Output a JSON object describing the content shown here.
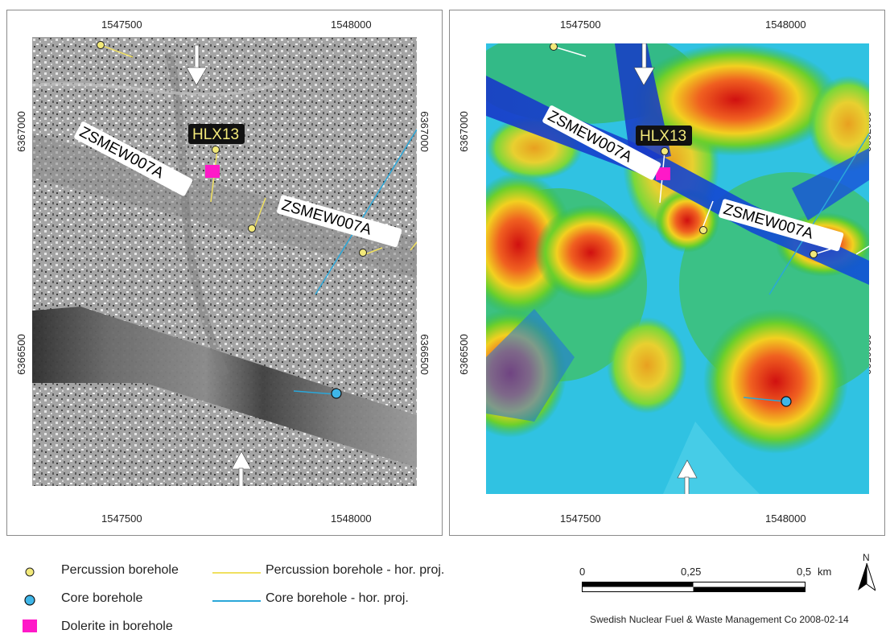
{
  "left_panel": {
    "x_ticks": [
      "1547500",
      "1548000"
    ],
    "y_ticks": [
      "6367000",
      "6366500"
    ],
    "zone_labels": [
      "ZSMEW007A",
      "ZSMEW007A"
    ],
    "borehole_label": "HLX13"
  },
  "right_panel": {
    "x_ticks": [
      "1547500",
      "1548000"
    ],
    "y_ticks": [
      "6367000",
      "6366500"
    ],
    "zone_labels": [
      "ZSMEW007A",
      "ZSMEW007A"
    ],
    "borehole_label": "HLX13"
  },
  "legend": {
    "percussion": "Percussion borehole",
    "percussion_proj": "Percussion borehole - hor. proj.",
    "core": "Core borehole",
    "core_proj": "Core borehole - hor. proj.",
    "dolerite": "Dolerite in borehole",
    "colors": {
      "percussion_fill": "#f2e97a",
      "percussion_line": "#f0e060",
      "core_fill": "#3fb6e8",
      "core_line": "#2aa7d9",
      "dolerite": "#ff19c8"
    }
  },
  "scale_bar": {
    "labels": [
      "0",
      "0,25",
      "0,5"
    ],
    "unit": "km"
  },
  "north_arrow": {
    "label": "N"
  },
  "credit": "Swedish Nuclear Fuel & Waste Management Co 2008-02-14"
}
